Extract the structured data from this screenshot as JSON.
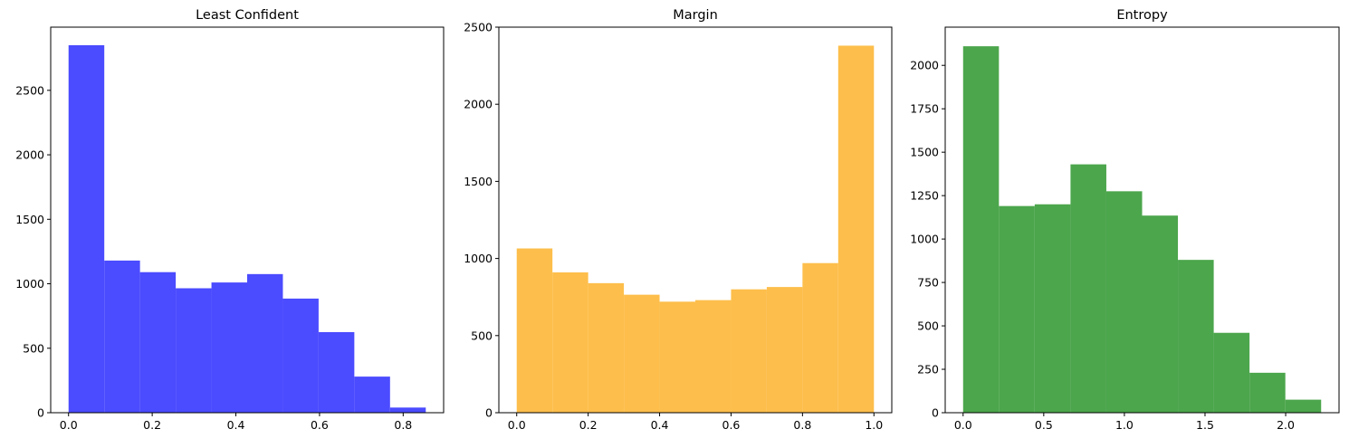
{
  "chart_data": [
    {
      "type": "bar",
      "title": "Least Confident",
      "xlabel": "",
      "ylabel": "",
      "color": "#4b4bff",
      "xlim": [
        -0.0427,
        0.8967
      ],
      "ylim": [
        0,
        2990
      ],
      "x_ticks": [
        0.0,
        0.2,
        0.4,
        0.6,
        0.8
      ],
      "x_tick_labels": [
        "0.0",
        "0.2",
        "0.4",
        "0.6",
        "0.8"
      ],
      "y_ticks": [
        0,
        500,
        1000,
        1500,
        2000,
        2500
      ],
      "y_tick_labels": [
        "0",
        "500",
        "1000",
        "1500",
        "2000",
        "2500"
      ],
      "bin_edges": [
        0.0,
        0.0854,
        0.1708,
        0.2562,
        0.3416,
        0.427,
        0.5124,
        0.5978,
        0.6832,
        0.7686,
        0.854
      ],
      "values": [
        2850,
        1180,
        1090,
        965,
        1010,
        1075,
        885,
        625,
        280,
        40
      ]
    },
    {
      "type": "bar",
      "title": "Margin",
      "xlabel": "",
      "ylabel": "",
      "color": "#fdbe4b",
      "xlim": [
        -0.05,
        1.05
      ],
      "ylim": [
        0,
        2500
      ],
      "x_ticks": [
        0.0,
        0.2,
        0.4,
        0.6,
        0.8,
        1.0
      ],
      "x_tick_labels": [
        "0.0",
        "0.2",
        "0.4",
        "0.6",
        "0.8",
        "1.0"
      ],
      "y_ticks": [
        0,
        500,
        1000,
        1500,
        2000,
        2500
      ],
      "y_tick_labels": [
        "0",
        "500",
        "1000",
        "1500",
        "2000",
        "2500"
      ],
      "bin_edges": [
        0.0,
        0.1,
        0.2,
        0.3,
        0.4,
        0.5,
        0.6,
        0.7,
        0.8,
        0.9,
        1.0
      ],
      "values": [
        1065,
        910,
        840,
        765,
        720,
        730,
        800,
        815,
        970,
        2380
      ]
    },
    {
      "type": "bar",
      "title": "Entropy",
      "xlabel": "",
      "ylabel": "",
      "color": "#4ca64c",
      "xlim": [
        -0.111,
        2.331
      ],
      "ylim": [
        0,
        2220
      ],
      "x_ticks": [
        0.0,
        0.5,
        1.0,
        1.5,
        2.0
      ],
      "x_tick_labels": [
        "0.0",
        "0.5",
        "1.0",
        "1.5",
        "2.0"
      ],
      "y_ticks": [
        0,
        250,
        500,
        750,
        1000,
        1250,
        1500,
        1750,
        2000
      ],
      "y_tick_labels": [
        "0",
        "250",
        "500",
        "750",
        "1000",
        "1250",
        "1500",
        "1750",
        "2000"
      ],
      "bin_edges": [
        0.0,
        0.222,
        0.444,
        0.666,
        0.888,
        1.11,
        1.332,
        1.554,
        1.776,
        1.998,
        2.22
      ],
      "values": [
        2110,
        1190,
        1200,
        1430,
        1275,
        1135,
        880,
        460,
        230,
        75
      ]
    }
  ]
}
